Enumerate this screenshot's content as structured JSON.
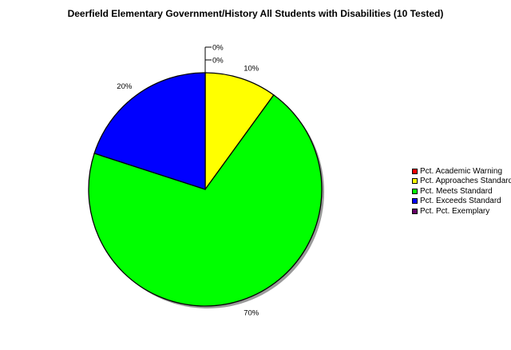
{
  "chart_data": {
    "type": "pie",
    "title": "Deerfield Elementary Government/History All Students with Disabilities (10 Tested)",
    "slices": [
      {
        "label": "Pct. Academic Warning",
        "value": 0,
        "display": "0%",
        "color": "#ff0000"
      },
      {
        "label": "Pct. Approaches Standard",
        "value": 10,
        "display": "10%",
        "color": "#ffff00"
      },
      {
        "label": "Pct. Meets Standard",
        "value": 70,
        "display": "70%",
        "color": "#00ff00"
      },
      {
        "label": "Pct. Exceeds Standard",
        "value": 20,
        "display": "20%",
        "color": "#0000ff"
      },
      {
        "label": "Pct. Pct. Exemplary",
        "value": 0,
        "display": "0%",
        "color": "#660066"
      }
    ],
    "legend_position": "right"
  }
}
